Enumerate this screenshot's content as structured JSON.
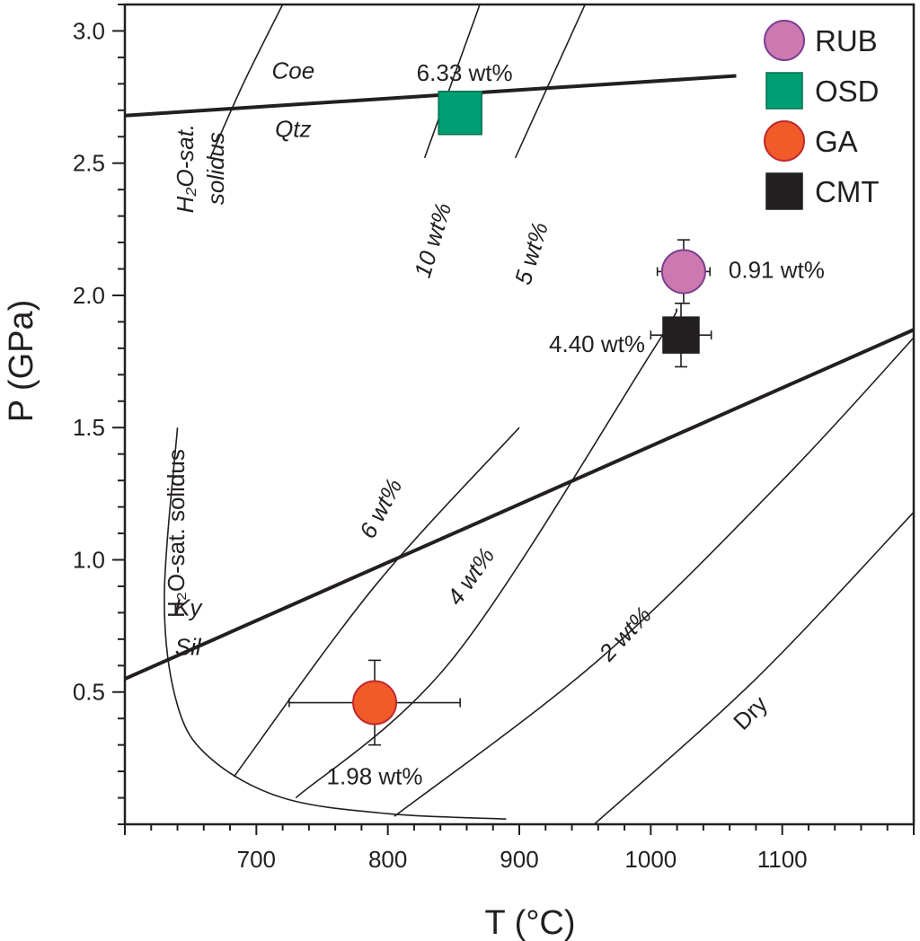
{
  "chart_data": {
    "type": "scatter",
    "xlabel": "T (°C)",
    "ylabel": "P (GPa)",
    "xlim": [
      600,
      1200
    ],
    "ylim": [
      0,
      3.1
    ],
    "x_ticks": [
      700,
      800,
      900,
      1000,
      1100
    ],
    "y_ticks": [
      0.5,
      1.0,
      1.5,
      2.0,
      2.5,
      3.0
    ],
    "x_tick_labels": [
      "700",
      "800",
      "900",
      "1000",
      "1100"
    ],
    "y_tick_labels": [
      "0.5",
      "1.0",
      "1.5",
      "2.0",
      "2.5",
      "3.0"
    ],
    "grid": false,
    "legend_position": "top-right",
    "series": [
      {
        "name": "RUB",
        "marker": "circle",
        "color": "#cc79b1",
        "stroke": "#7b3f8f",
        "points": [
          {
            "x": 1025,
            "y": 2.09,
            "xerr": 20,
            "yerr": 0.12,
            "label": "0.91 wt%"
          }
        ]
      },
      {
        "name": "OSD",
        "marker": "square",
        "color": "#009e73",
        "stroke": "#00704f",
        "points": [
          {
            "x": 855,
            "y": 2.69,
            "label": "6.33 wt%"
          }
        ]
      },
      {
        "name": "GA",
        "marker": "circle",
        "color": "#f15a29",
        "stroke": "#c0282d",
        "points": [
          {
            "x": 790,
            "y": 0.46,
            "xerr": 65,
            "yerr": 0.16,
            "label": "1.98 wt%"
          }
        ]
      },
      {
        "name": "CMT",
        "marker": "square",
        "color": "#231f20",
        "stroke": "#231f20",
        "points": [
          {
            "x": 1023,
            "y": 1.85,
            "xerr": 23,
            "yerr": 0.12,
            "label": "4.40 wt%"
          }
        ]
      }
    ],
    "curves": [
      {
        "id": "coe-qtz",
        "weight": "thick",
        "points": [
          [
            600,
            2.68
          ],
          [
            1065,
            2.83
          ]
        ]
      },
      {
        "id": "ky-sil",
        "weight": "thick",
        "points": [
          [
            600,
            0.55
          ],
          [
            1200,
            1.87
          ]
        ]
      },
      {
        "id": "h2o-solidus-low",
        "weight": "thin",
        "points": [
          [
            640,
            1.5
          ],
          [
            630,
            0.85
          ],
          [
            640,
            0.45
          ],
          [
            665,
            0.25
          ],
          [
            720,
            0.1
          ],
          [
            800,
            0.04
          ],
          [
            890,
            0.02
          ]
        ]
      },
      {
        "id": "h2o-solidus-high",
        "weight": "thin",
        "points": [
          [
            665,
            2.52
          ],
          [
            690,
            2.8
          ],
          [
            720,
            3.1
          ]
        ]
      },
      {
        "id": "wt-10",
        "weight": "thin",
        "points": [
          [
            828,
            2.52
          ],
          [
            870,
            3.1
          ]
        ]
      },
      {
        "id": "wt-5",
        "weight": "thin",
        "points": [
          [
            897,
            2.52
          ],
          [
            950,
            3.1
          ]
        ]
      },
      {
        "id": "wt-6",
        "weight": "thin",
        "points": [
          [
            683,
            0.18
          ],
          [
            790,
            0.9
          ],
          [
            900,
            1.5
          ]
        ]
      },
      {
        "id": "wt-4",
        "weight": "thin",
        "points": [
          [
            730,
            0.1
          ],
          [
            850,
            0.63
          ],
          [
            1000,
            1.78
          ],
          [
            1020,
            1.95
          ]
        ]
      },
      {
        "id": "wt-2",
        "weight": "thin",
        "points": [
          [
            805,
            0.03
          ],
          [
            960,
            0.62
          ],
          [
            1100,
            1.3
          ],
          [
            1200,
            1.84
          ]
        ]
      },
      {
        "id": "dry",
        "weight": "thin",
        "points": [
          [
            957,
            0.0
          ],
          [
            1080,
            0.55
          ],
          [
            1200,
            1.18
          ]
        ]
      }
    ],
    "annotations": [
      {
        "text": "Coe",
        "x": 728,
        "y": 2.82,
        "rotate": 0,
        "italic": true
      },
      {
        "text": "Qtz",
        "x": 728,
        "y": 2.6,
        "rotate": 0,
        "italic": true
      },
      {
        "text": "H₂O-sat.",
        "x": 652,
        "y": 2.48,
        "rotate": -90,
        "italic": true
      },
      {
        "text": "solidus",
        "x": 675,
        "y": 2.48,
        "rotate": -90,
        "italic": true
      },
      {
        "text": "10 wt%",
        "x": 840,
        "y": 2.2,
        "rotate": -73,
        "italic": true
      },
      {
        "text": "5 wt%",
        "x": 915,
        "y": 2.15,
        "rotate": -73,
        "italic": true
      },
      {
        "text": "H₂O-sat. solidus",
        "x": 645,
        "y": 1.1,
        "rotate": -90,
        "italic": false
      },
      {
        "text": "6 wt%",
        "x": 800,
        "y": 1.18,
        "rotate": -62,
        "italic": true
      },
      {
        "text": "4 wt%",
        "x": 868,
        "y": 0.92,
        "rotate": -55,
        "italic": true
      },
      {
        "text": "2 wt%",
        "x": 985,
        "y": 0.7,
        "rotate": -47,
        "italic": true
      },
      {
        "text": "Dry",
        "x": 1080,
        "y": 0.4,
        "rotate": -45,
        "italic": false
      },
      {
        "text": "Ky",
        "x": 648,
        "y": 0.79,
        "rotate": 0,
        "italic": true
      },
      {
        "text": "Sil",
        "x": 648,
        "y": 0.64,
        "rotate": 0,
        "italic": true
      }
    ]
  }
}
